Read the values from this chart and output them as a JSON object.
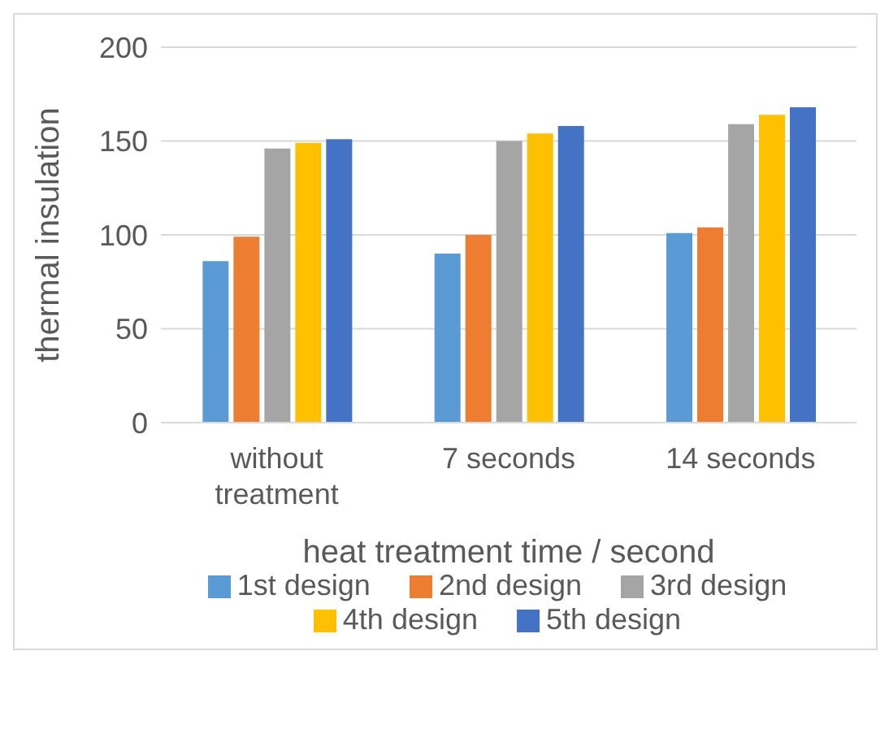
{
  "chart_data": {
    "type": "bar",
    "xlabel": "heat treatment time / second",
    "ylabel": "thermal insulation",
    "categories": [
      "without treatment",
      "7 seconds",
      "14 seconds"
    ],
    "series": [
      {
        "name": "1st design",
        "color": "#5b9bd5",
        "values": [
          86,
          90,
          101
        ]
      },
      {
        "name": "2nd design",
        "color": "#ed7d31",
        "values": [
          99,
          100,
          104
        ]
      },
      {
        "name": "3rd design",
        "color": "#a5a5a5",
        "values": [
          146,
          150,
          159
        ]
      },
      {
        "name": "4th design",
        "color": "#ffc000",
        "values": [
          149,
          154,
          164
        ]
      },
      {
        "name": "5th design",
        "color": "#4472c4",
        "values": [
          151,
          158,
          168
        ]
      }
    ],
    "ylim": [
      0,
      200
    ],
    "yticks": [
      0,
      50,
      100,
      150,
      200
    ],
    "grid": "y",
    "legend": "bottom"
  }
}
